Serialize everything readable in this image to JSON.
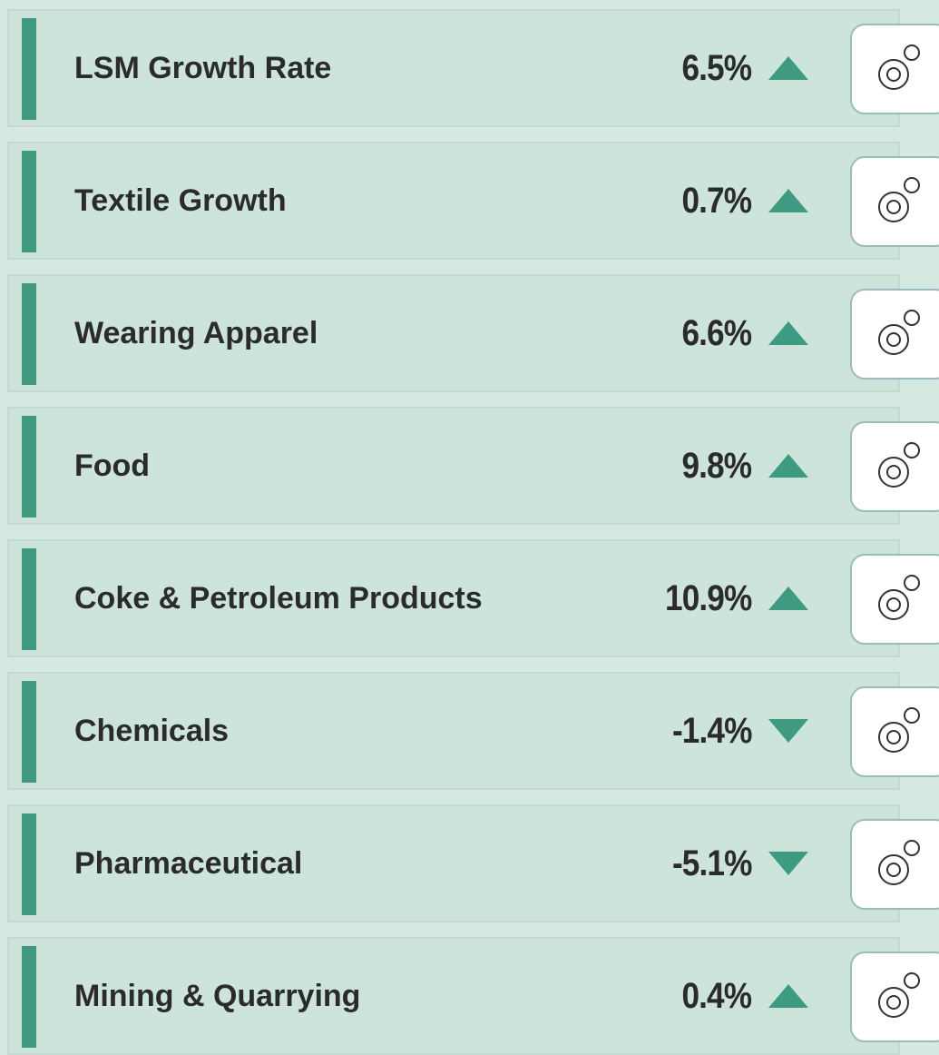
{
  "rows": [
    {
      "label": "LSM Growth Rate",
      "value": "6.5%",
      "trend": "up"
    },
    {
      "label": "Textile Growth",
      "value": "0.7%",
      "trend": "up"
    },
    {
      "label": "Wearing Apparel",
      "value": "6.6%",
      "trend": "up"
    },
    {
      "label": "Food",
      "value": "9.8%",
      "trend": "up"
    },
    {
      "label": "Coke & Petroleum Products",
      "value": "10.9%",
      "trend": "up"
    },
    {
      "label": "Chemicals",
      "value": "-1.4%",
      "trend": "down"
    },
    {
      "label": "Pharmaceutical",
      "value": "-5.1%",
      "trend": "down"
    },
    {
      "label": "Mining & Quarrying",
      "value": "0.4%",
      "trend": "up"
    }
  ]
}
